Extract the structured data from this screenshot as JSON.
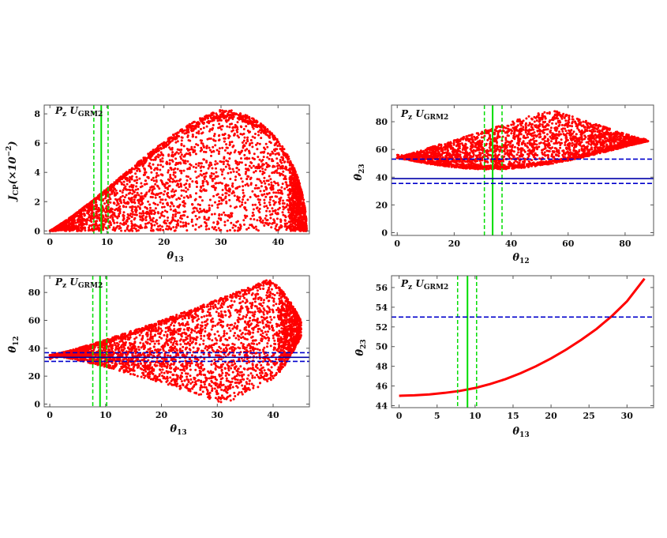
{
  "colors": {
    "points": "#ff0000",
    "best_fit_green": "#00dd00",
    "range_green": "#00dd00",
    "best_fit_blue": "#0000aa",
    "range_blue": "#0000cc",
    "axes": "#555555"
  },
  "chart_data": [
    {
      "type": "scatter",
      "panel_label": "P_z U_GRM2",
      "xlabel": "θ13",
      "ylabel": "J_CP(×10^-2)",
      "xlim": [
        -1,
        45.5
      ],
      "ylim": [
        -0.2,
        8.6
      ],
      "xticks": [
        0,
        10,
        20,
        30,
        40
      ],
      "yticks": [
        0,
        2,
        4,
        6,
        8
      ],
      "envelope": {
        "description": "filled region bounded below by J=0 and above by the maximum J curve",
        "x_range": [
          0,
          45
        ],
        "peak": {
          "x": 30,
          "y": 8.3
        }
      },
      "vlines": [
        {
          "x": 9.0,
          "style": "solid",
          "color": "green"
        },
        {
          "x": 7.7,
          "style": "dashed",
          "color": "green"
        },
        {
          "x": 10.2,
          "style": "dashed",
          "color": "green"
        }
      ],
      "hlines": []
    },
    {
      "type": "scatter",
      "panel_label": "P_z U_GRM2",
      "xlabel": "θ12",
      "ylabel": "θ23",
      "xlim": [
        -2,
        90
      ],
      "ylim": [
        -2,
        92
      ],
      "xticks": [
        0,
        20,
        40,
        60,
        80
      ],
      "yticks": [
        0,
        20,
        40,
        60,
        80
      ],
      "envelope": {
        "description": "lens-shaped region from (0,54) to (88,66)",
        "vertices_top": [
          [
            0,
            54
          ],
          [
            54,
            89
          ],
          [
            88,
            66
          ]
        ],
        "vertices_bottom": [
          [
            0,
            54
          ],
          [
            30,
            45
          ],
          [
            88,
            66
          ]
        ]
      },
      "vlines": [
        {
          "x": 33.5,
          "style": "solid",
          "color": "green"
        },
        {
          "x": 30.6,
          "style": "dashed",
          "color": "green"
        },
        {
          "x": 36.8,
          "style": "dashed",
          "color": "green"
        }
      ],
      "hlines": [
        {
          "y": 39,
          "style": "solid",
          "color": "blue"
        },
        {
          "y": 35.5,
          "style": "dashed",
          "color": "blue"
        },
        {
          "y": 53,
          "style": "dashed",
          "color": "blue"
        }
      ]
    },
    {
      "type": "scatter",
      "panel_label": "P_z U_GRM2",
      "xlabel": "θ13",
      "ylabel": "θ12",
      "xlim": [
        -1,
        46.5
      ],
      "ylim": [
        -2,
        92
      ],
      "xticks": [
        0,
        10,
        20,
        30,
        40
      ],
      "yticks": [
        0,
        20,
        40,
        60,
        80
      ],
      "envelope": {
        "description": "wedge opening from (0,35) to the right; top reaches ~89 near x=39, bottom reaches ~0 near x=31",
        "top_point": [
          39,
          89
        ],
        "bottom_point": [
          31,
          0
        ],
        "right_edge_x": 45
      },
      "vlines": [
        {
          "x": 9.0,
          "style": "solid",
          "color": "green"
        },
        {
          "x": 7.7,
          "style": "dashed",
          "color": "green"
        },
        {
          "x": 10.2,
          "style": "dashed",
          "color": "green"
        }
      ],
      "hlines": [
        {
          "y": 33.5,
          "style": "solid",
          "color": "blue"
        },
        {
          "y": 30.6,
          "style": "dashed",
          "color": "blue"
        },
        {
          "y": 36.8,
          "style": "dashed",
          "color": "blue"
        }
      ]
    },
    {
      "type": "line",
      "panel_label": "P_z U_GRM2",
      "xlabel": "θ13",
      "ylabel": "θ23",
      "xlim": [
        -1,
        33.5
      ],
      "ylim": [
        43.8,
        57.2
      ],
      "xticks": [
        0,
        5,
        10,
        15,
        20,
        25,
        30
      ],
      "yticks": [
        44,
        46,
        48,
        50,
        52,
        54,
        56
      ],
      "series": [
        {
          "x": [
            0,
            2,
            4,
            6,
            8,
            10,
            12,
            14,
            16,
            18,
            20,
            22,
            24,
            26,
            28,
            30,
            32.3
          ],
          "y": [
            45.0,
            45.05,
            45.15,
            45.3,
            45.5,
            45.8,
            46.2,
            46.7,
            47.3,
            48.0,
            48.8,
            49.7,
            50.7,
            51.8,
            53.1,
            54.6,
            56.9
          ]
        }
      ],
      "vlines": [
        {
          "x": 9.0,
          "style": "solid",
          "color": "green"
        },
        {
          "x": 7.7,
          "style": "dashed",
          "color": "green"
        },
        {
          "x": 10.2,
          "style": "dashed",
          "color": "green"
        }
      ],
      "hlines": [
        {
          "y": 53.0,
          "style": "dashed",
          "color": "blue"
        }
      ]
    }
  ]
}
